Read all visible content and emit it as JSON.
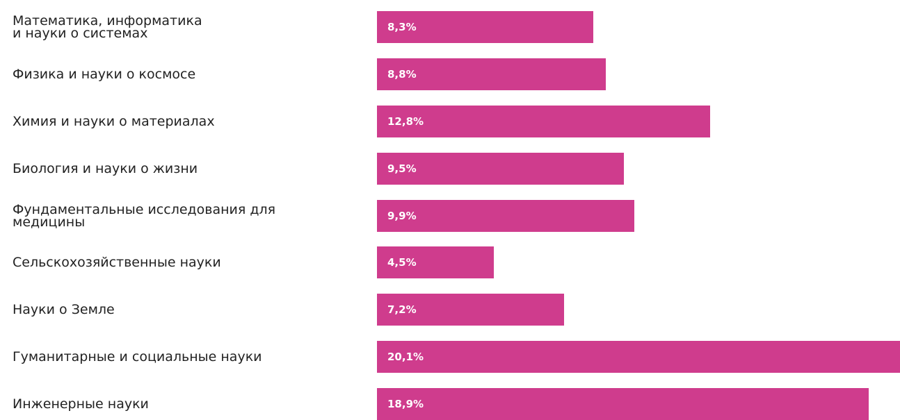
{
  "chart_data": {
    "type": "bar",
    "orientation": "horizontal",
    "categories": [
      "Математика, информатика\nи науки о системах",
      "Физика и науки о космосе",
      "Химия и науки о материалах",
      "Биология и науки о жизни",
      "Фундаментальные исследования для\nмедицины",
      "Сельскохозяйственные науки",
      "Науки о Земле",
      "Гуманитарные и социальные науки",
      "Инженерные науки"
    ],
    "values": [
      8.3,
      8.8,
      12.8,
      9.5,
      9.9,
      4.5,
      7.2,
      20.1,
      18.9
    ],
    "value_labels": [
      "8,3%",
      "8,8%",
      "12,8%",
      "9,5%",
      "9,9%",
      "4,5%",
      "7,2%",
      "20,1%",
      "18,9%"
    ],
    "unit": "%",
    "xlim": [
      0,
      20.1
    ],
    "grid": false,
    "legend": "none",
    "colors": {
      "bar": "#cf3c8d",
      "bar_label": "#ffffff",
      "category_label": "#222222"
    }
  }
}
